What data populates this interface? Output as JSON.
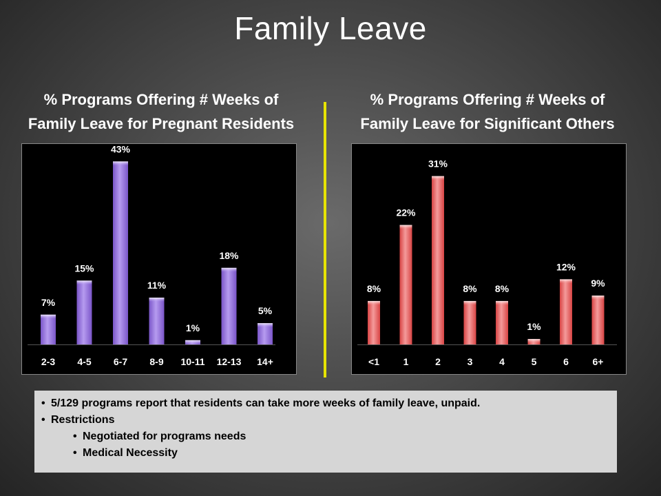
{
  "title": "Family Leave",
  "chart_data": [
    {
      "type": "bar",
      "title": "% Programs Offering # Weeks of Family Leave for Pregnant Residents",
      "title_lines": [
        "% Programs Offering # Weeks of",
        "Family Leave for Pregnant Residents"
      ],
      "categories": [
        "2-3",
        "4-5",
        "6-7",
        "8-9",
        "10-11",
        "12-13",
        "14+"
      ],
      "values": [
        7,
        15,
        43,
        11,
        1,
        18,
        5
      ],
      "data_labels": [
        "7%",
        "15%",
        "43%",
        "11%",
        "1%",
        "18%",
        "5%"
      ],
      "ylim": [
        0,
        45
      ],
      "grid": false,
      "bar_color": "#b69bf0",
      "bar_color_dark": "#7a55c8"
    },
    {
      "type": "bar",
      "title": "% Programs Offering # Weeks of Family Leave for Significant Others",
      "title_lines": [
        "% Programs Offering # Weeks of",
        "Family Leave for Significant Others"
      ],
      "categories": [
        "<1",
        "1",
        "2",
        "3",
        "4",
        "5",
        "6",
        "6+"
      ],
      "values": [
        8,
        22,
        31,
        8,
        8,
        1,
        12,
        9
      ],
      "data_labels": [
        "8%",
        "22%",
        "31%",
        "8%",
        "8%",
        "1%",
        "12%",
        "9%"
      ],
      "ylim": [
        0,
        34
      ],
      "grid": false,
      "bar_color": "#f49a9a",
      "bar_color_dark": "#d84444"
    }
  ],
  "notes": {
    "bullets": [
      "5/129 programs report that residents can take more weeks of family leave, unpaid.",
      "Restrictions"
    ],
    "sub_bullets": [
      "Negotiated for programs needs",
      "Medical Necessity"
    ]
  },
  "colors": {
    "divider": "#e7e400",
    "notes_bg": "#d6d6d6",
    "chart_bg": "#000000"
  }
}
